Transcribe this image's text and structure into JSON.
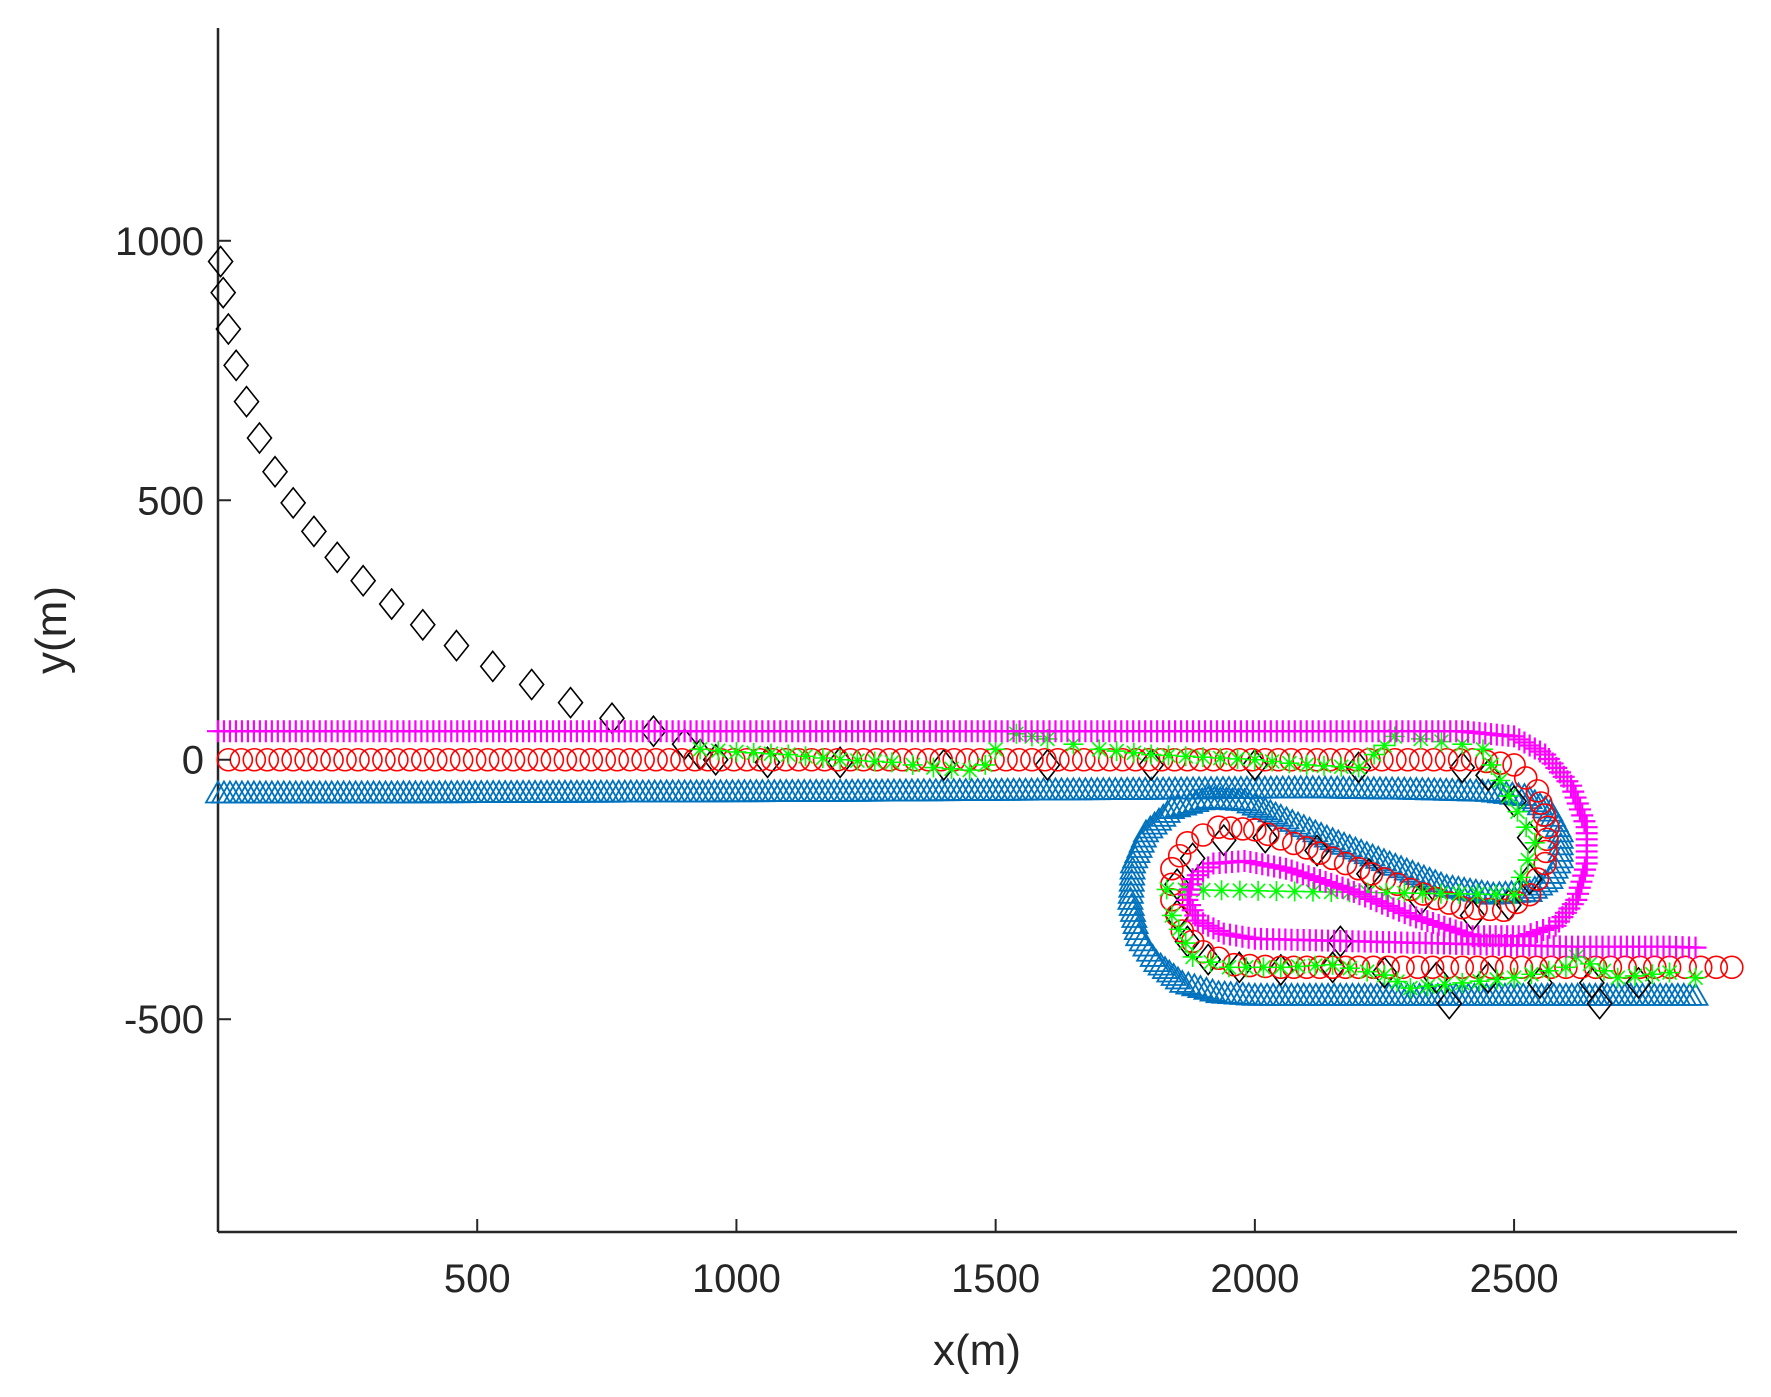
{
  "chart_data": {
    "type": "scatter",
    "title": "",
    "xlabel": "x(m)",
    "ylabel": "y(m)",
    "xlim": [
      0,
      2930
    ],
    "ylim": [
      -910,
      1410
    ],
    "xticks": [
      500,
      1000,
      1500,
      2000,
      2500
    ],
    "xtick_labels": [
      "500",
      "1000",
      "1500",
      "2000",
      "2500"
    ],
    "yticks": [
      -500,
      0,
      500,
      1000
    ],
    "ytick_labels": [
      "-500",
      "0",
      "500",
      "1000"
    ],
    "grid": false,
    "legend": null,
    "series": [
      {
        "marker": "triangle",
        "color": "#0072BD",
        "points": [
          [
            0,
            -65
          ],
          [
            300,
            -65
          ],
          [
            600,
            -64
          ],
          [
            900,
            -63
          ],
          [
            1200,
            -62
          ],
          [
            1500,
            -60
          ],
          [
            1800,
            -58
          ],
          [
            2100,
            -55
          ],
          [
            2300,
            -58
          ],
          [
            2450,
            -62
          ],
          [
            2520,
            -70
          ],
          [
            2570,
            -100
          ],
          [
            2590,
            -140
          ],
          [
            2590,
            -190
          ],
          [
            2570,
            -230
          ],
          [
            2530,
            -255
          ],
          [
            2460,
            -260
          ],
          [
            2370,
            -245
          ],
          [
            2260,
            -200
          ],
          [
            2150,
            -155
          ],
          [
            2050,
            -110
          ],
          [
            1980,
            -80
          ],
          [
            1910,
            -75
          ],
          [
            1840,
            -95
          ],
          [
            1790,
            -140
          ],
          [
            1765,
            -200
          ],
          [
            1760,
            -270
          ],
          [
            1775,
            -340
          ],
          [
            1810,
            -390
          ],
          [
            1860,
            -430
          ],
          [
            1930,
            -450
          ],
          [
            2000,
            -455
          ],
          [
            2200,
            -455
          ],
          [
            2400,
            -455
          ],
          [
            2600,
            -455
          ],
          [
            2850,
            -455
          ]
        ]
      },
      {
        "marker": "circle",
        "color": "#FF0000",
        "points": [
          [
            20,
            0
          ],
          [
            120,
            0
          ],
          [
            220,
            0
          ],
          [
            320,
            0
          ],
          [
            420,
            0
          ],
          [
            520,
            0
          ],
          [
            620,
            0
          ],
          [
            720,
            0
          ],
          [
            820,
            0
          ],
          [
            920,
            0
          ],
          [
            1020,
            0
          ],
          [
            1120,
            0
          ],
          [
            1220,
            0
          ],
          [
            1320,
            0
          ],
          [
            1420,
            0
          ],
          [
            1520,
            0
          ],
          [
            1620,
            0
          ],
          [
            1720,
            0
          ],
          [
            1820,
            0
          ],
          [
            1920,
            0
          ],
          [
            2020,
            0
          ],
          [
            2120,
            0
          ],
          [
            2220,
            0
          ],
          [
            2320,
            0
          ],
          [
            2420,
            0
          ],
          [
            2500,
            -10
          ],
          [
            2545,
            -60
          ],
          [
            2565,
            -130
          ],
          [
            2560,
            -200
          ],
          [
            2530,
            -260
          ],
          [
            2480,
            -290
          ],
          [
            2400,
            -285
          ],
          [
            2300,
            -250
          ],
          [
            2200,
            -210
          ],
          [
            2100,
            -170
          ],
          [
            2000,
            -135
          ],
          [
            1930,
            -130
          ],
          [
            1870,
            -160
          ],
          [
            1840,
            -210
          ],
          [
            1840,
            -270
          ],
          [
            1860,
            -330
          ],
          [
            1900,
            -370
          ],
          [
            1960,
            -395
          ],
          [
            2050,
            -400
          ],
          [
            2200,
            -400
          ],
          [
            2400,
            -400
          ],
          [
            2600,
            -400
          ],
          [
            2800,
            -400
          ],
          [
            2920,
            -400
          ]
        ]
      },
      {
        "marker": "diamond",
        "color": "#000000",
        "points": [
          [
            5,
            960
          ],
          [
            10,
            900
          ],
          [
            20,
            830
          ],
          [
            35,
            760
          ],
          [
            55,
            690
          ],
          [
            80,
            620
          ],
          [
            110,
            555
          ],
          [
            145,
            495
          ],
          [
            185,
            440
          ],
          [
            230,
            390
          ],
          [
            280,
            345
          ],
          [
            335,
            300
          ],
          [
            395,
            260
          ],
          [
            460,
            220
          ],
          [
            530,
            180
          ],
          [
            605,
            145
          ],
          [
            680,
            110
          ],
          [
            760,
            80
          ],
          [
            840,
            55
          ],
          [
            900,
            30
          ],
          [
            930,
            10
          ],
          [
            960,
            0
          ],
          [
            1060,
            -5
          ],
          [
            1200,
            -5
          ],
          [
            1400,
            -10
          ],
          [
            1600,
            -10
          ],
          [
            1800,
            -10
          ],
          [
            2000,
            -10
          ],
          [
            2200,
            -15
          ],
          [
            2400,
            -15
          ],
          [
            2450,
            -30
          ],
          [
            2500,
            -80
          ],
          [
            2530,
            -150
          ],
          [
            2530,
            -230
          ],
          [
            2490,
            -280
          ],
          [
            2420,
            -300
          ],
          [
            2320,
            -270
          ],
          [
            2220,
            -220
          ],
          [
            2120,
            -175
          ],
          [
            2020,
            -150
          ],
          [
            1940,
            -155
          ],
          [
            1880,
            -190
          ],
          [
            1850,
            -240
          ],
          [
            1850,
            -300
          ],
          [
            1870,
            -350
          ],
          [
            1910,
            -385
          ],
          [
            1970,
            -400
          ],
          [
            2050,
            -405
          ],
          [
            2150,
            -400
          ],
          [
            2250,
            -410
          ],
          [
            2350,
            -420
          ],
          [
            2450,
            -420
          ],
          [
            2550,
            -430
          ],
          [
            2650,
            -430
          ],
          [
            2740,
            -430
          ],
          [
            2165,
            -350
          ],
          [
            2375,
            -470
          ],
          [
            2665,
            -470
          ],
          [
            2450,
            -30
          ]
        ]
      },
      {
        "marker": "asterisk",
        "color": "#00FF00",
        "points": [
          [
            930,
            20
          ],
          [
            1000,
            15
          ],
          [
            1100,
            10
          ],
          [
            1200,
            0
          ],
          [
            1300,
            -5
          ],
          [
            1380,
            -15
          ],
          [
            1450,
            -20
          ],
          [
            1480,
            -10
          ],
          [
            1500,
            20
          ],
          [
            1540,
            50
          ],
          [
            1600,
            40
          ],
          [
            1650,
            30
          ],
          [
            1700,
            20
          ],
          [
            1800,
            10
          ],
          [
            1900,
            5
          ],
          [
            2000,
            0
          ],
          [
            2100,
            -10
          ],
          [
            2200,
            -15
          ],
          [
            2230,
            10
          ],
          [
            2270,
            45
          ],
          [
            2320,
            40
          ],
          [
            2400,
            30
          ],
          [
            2440,
            20
          ],
          [
            2540,
            -160
          ],
          [
            2500,
            -260
          ],
          [
            1830,
            -250
          ],
          [
            1840,
            -300
          ],
          [
            1880,
            -380
          ],
          [
            1950,
            -400
          ],
          [
            2050,
            -400
          ],
          [
            2150,
            -395
          ],
          [
            2250,
            -415
          ],
          [
            2300,
            -440
          ],
          [
            2400,
            -430
          ],
          [
            2500,
            -420
          ],
          [
            2600,
            -400
          ],
          [
            2620,
            -380
          ],
          [
            2700,
            -420
          ],
          [
            2800,
            -410
          ],
          [
            2850,
            -420
          ]
        ]
      },
      {
        "marker": "plus",
        "color": "#FF00FF",
        "points": [
          [
            0,
            55
          ],
          [
            300,
            55
          ],
          [
            600,
            55
          ],
          [
            900,
            55
          ],
          [
            1200,
            55
          ],
          [
            1500,
            55
          ],
          [
            1800,
            55
          ],
          [
            2100,
            55
          ],
          [
            2400,
            55
          ],
          [
            2500,
            45
          ],
          [
            2560,
            10
          ],
          [
            2610,
            -50
          ],
          [
            2640,
            -130
          ],
          [
            2640,
            -200
          ],
          [
            2620,
            -270
          ],
          [
            2580,
            -320
          ],
          [
            2520,
            -340
          ],
          [
            2420,
            -340
          ],
          [
            2300,
            -300
          ],
          [
            2180,
            -250
          ],
          [
            2060,
            -210
          ],
          [
            1980,
            -195
          ],
          [
            1920,
            -200
          ],
          [
            1880,
            -230
          ],
          [
            1870,
            -270
          ],
          [
            1890,
            -310
          ],
          [
            1940,
            -335
          ],
          [
            2000,
            -345
          ],
          [
            2200,
            -350
          ],
          [
            2400,
            -355
          ],
          [
            2600,
            -360
          ],
          [
            2800,
            -360
          ],
          [
            2850,
            -362
          ]
        ]
      }
    ]
  }
}
